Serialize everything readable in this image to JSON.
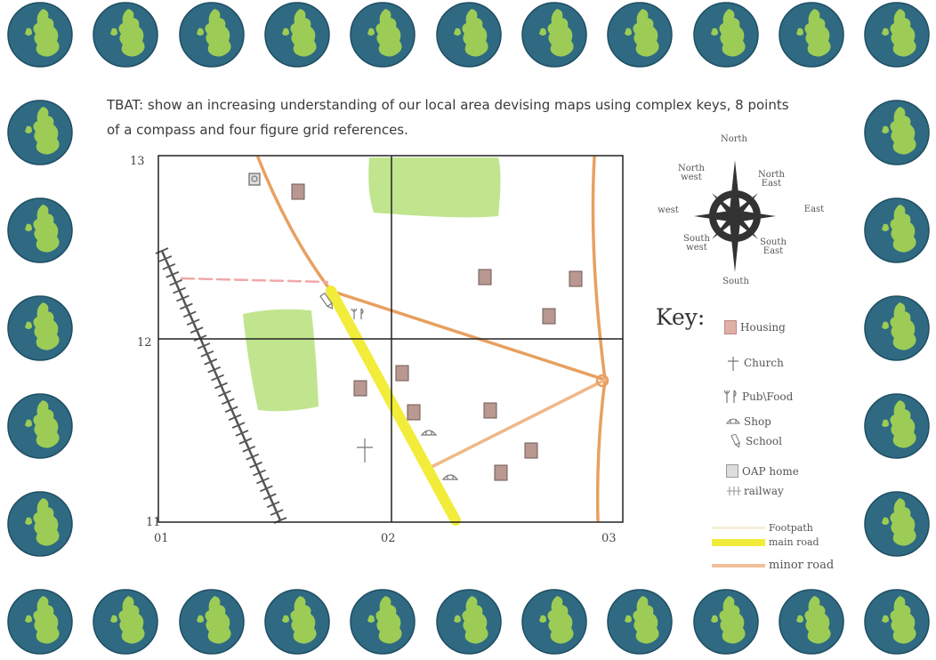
{
  "objective": {
    "line1": "TBAT: show an increasing understanding of our local area devising maps using complex keys, 8 points",
    "line2": "of a compass and four figure grid references."
  },
  "map": {
    "y_ticks": [
      "13",
      "12",
      "11"
    ],
    "x_ticks": [
      "01",
      "02",
      "03"
    ]
  },
  "compass": {
    "north": "North",
    "north_west": "North west",
    "north_east": "North East",
    "west": "west",
    "east": "East",
    "south_west": "South west",
    "south_east": "South East",
    "south": "South"
  },
  "key": {
    "title": "Key:",
    "items": [
      {
        "label": "Housing",
        "icon": "housing-icon"
      },
      {
        "label": "Church",
        "icon": "church-cross-icon"
      },
      {
        "label": "Pub\\Food",
        "icon": "pub-fork-icon"
      },
      {
        "label": "Shop",
        "icon": "shop-basket-icon"
      },
      {
        "label": "School",
        "icon": "school-pencil-icon"
      },
      {
        "label": "OAP home",
        "icon": "oap-home-icon"
      },
      {
        "label": "railway",
        "icon": "railway-track-icon"
      },
      {
        "label": "Footpath",
        "icon": "footpath-line-icon"
      },
      {
        "label": "main road",
        "icon": "main-road-line-icon"
      },
      {
        "label": "minor road",
        "icon": "minor-road-line-icon"
      }
    ]
  },
  "colors": {
    "minor_road": "#e8a060",
    "main_road": "#f2ec3a",
    "footpath": "#f0a8a8",
    "park": "#b5e07a",
    "housing": "#b89890",
    "globe_ocean": "#2f6a82",
    "globe_land": "#9ccc55"
  }
}
